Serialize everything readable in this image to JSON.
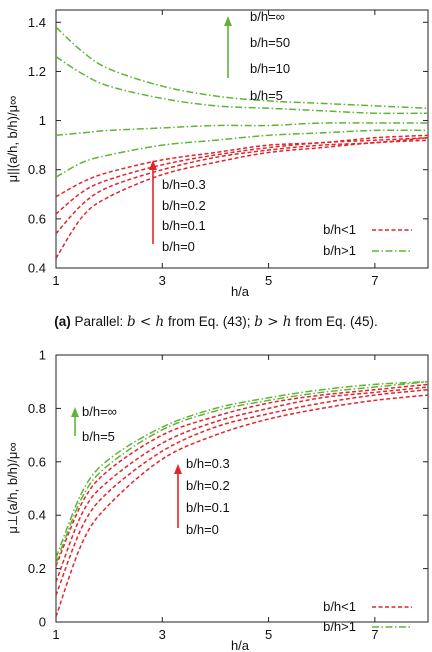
{
  "colors": {
    "lt": "#e4242b",
    "gt": "#5fb536",
    "axis": "#222222"
  },
  "captions": {
    "a": {
      "tag": "(a)",
      "text_pre": " Parallel: ",
      "m1": "b < h",
      "text_mid": " from Eq. (43); ",
      "m2": "b > h",
      "text_post": " from Eq. (45)."
    }
  },
  "chart_data": [
    {
      "type": "line",
      "ylabel": "μ||(a/h, b/h)/μ∞",
      "xlabel": "h/a",
      "xlim": [
        1,
        8
      ],
      "ylim": [
        0.4,
        1.45
      ],
      "xticks": [
        "1",
        "3",
        "5",
        "7"
      ],
      "yticks": [
        "0.4",
        "0.6",
        "0.8",
        "1",
        "1.2",
        "1.4"
      ],
      "legend": {
        "position": "bottom-right",
        "entries": [
          "b/h<1",
          "b/h>1"
        ]
      },
      "annotations": {
        "gt": [
          "b/h=∞",
          "b/h=50",
          "b/h=10",
          "b/h=5"
        ],
        "lt": [
          "b/h=0.3",
          "b/h=0.2",
          "b/h=0.1",
          "b/h=0"
        ]
      },
      "x": [
        1,
        1.5,
        2,
        3,
        4,
        5,
        6,
        7,
        8
      ],
      "series": [
        {
          "group": "lt",
          "values": [
            0.44,
            0.61,
            0.69,
            0.78,
            0.83,
            0.87,
            0.89,
            0.91,
            0.92
          ]
        },
        {
          "group": "lt",
          "values": [
            0.54,
            0.66,
            0.73,
            0.8,
            0.85,
            0.88,
            0.9,
            0.91,
            0.93
          ]
        },
        {
          "group": "lt",
          "values": [
            0.62,
            0.71,
            0.76,
            0.82,
            0.86,
            0.89,
            0.91,
            0.92,
            0.93
          ]
        },
        {
          "group": "lt",
          "values": [
            0.69,
            0.75,
            0.79,
            0.84,
            0.87,
            0.9,
            0.91,
            0.93,
            0.94
          ]
        },
        {
          "group": "gt",
          "values": [
            0.77,
            0.83,
            0.86,
            0.9,
            0.92,
            0.94,
            0.95,
            0.96,
            0.96
          ]
        },
        {
          "group": "gt",
          "values": [
            0.94,
            0.95,
            0.96,
            0.97,
            0.98,
            0.98,
            0.99,
            0.99,
            0.99
          ]
        },
        {
          "group": "gt",
          "values": [
            1.26,
            1.19,
            1.14,
            1.09,
            1.06,
            1.05,
            1.04,
            1.03,
            1.03
          ]
        },
        {
          "group": "gt",
          "values": [
            1.38,
            1.28,
            1.21,
            1.14,
            1.1,
            1.08,
            1.07,
            1.06,
            1.05
          ]
        }
      ]
    },
    {
      "type": "line",
      "ylabel": "μ⊥(a/h, b/h)/μ∞",
      "xlabel": "h/a",
      "xlim": [
        1,
        8
      ],
      "ylim": [
        0,
        1
      ],
      "xticks": [
        "1",
        "3",
        "5",
        "7"
      ],
      "yticks": [
        "0",
        "0.2",
        "0.4",
        "0.6",
        "0.8",
        "1"
      ],
      "legend": {
        "position": "bottom-right",
        "entries": [
          "b/h<1",
          "b/h>1"
        ]
      },
      "annotations": {
        "gt": [
          "b/h=∞",
          "b/h=5"
        ],
        "lt": [
          "b/h=0.3",
          "b/h=0.2",
          "b/h=0.1",
          "b/h=0"
        ]
      },
      "x": [
        1,
        1.5,
        2,
        3,
        4,
        5,
        6,
        7,
        8
      ],
      "series": [
        {
          "group": "lt",
          "values": [
            0.02,
            0.3,
            0.44,
            0.61,
            0.7,
            0.76,
            0.8,
            0.83,
            0.85
          ]
        },
        {
          "group": "lt",
          "values": [
            0.1,
            0.36,
            0.49,
            0.64,
            0.73,
            0.78,
            0.82,
            0.85,
            0.87
          ]
        },
        {
          "group": "lt",
          "values": [
            0.15,
            0.41,
            0.53,
            0.67,
            0.75,
            0.8,
            0.84,
            0.86,
            0.88
          ]
        },
        {
          "group": "lt",
          "values": [
            0.21,
            0.45,
            0.57,
            0.7,
            0.77,
            0.82,
            0.85,
            0.87,
            0.89
          ]
        },
        {
          "group": "gt",
          "values": [
            0.22,
            0.47,
            0.59,
            0.72,
            0.79,
            0.83,
            0.86,
            0.88,
            0.9
          ]
        },
        {
          "group": "gt",
          "values": [
            0.24,
            0.49,
            0.61,
            0.73,
            0.8,
            0.84,
            0.87,
            0.89,
            0.9
          ]
        }
      ]
    }
  ]
}
